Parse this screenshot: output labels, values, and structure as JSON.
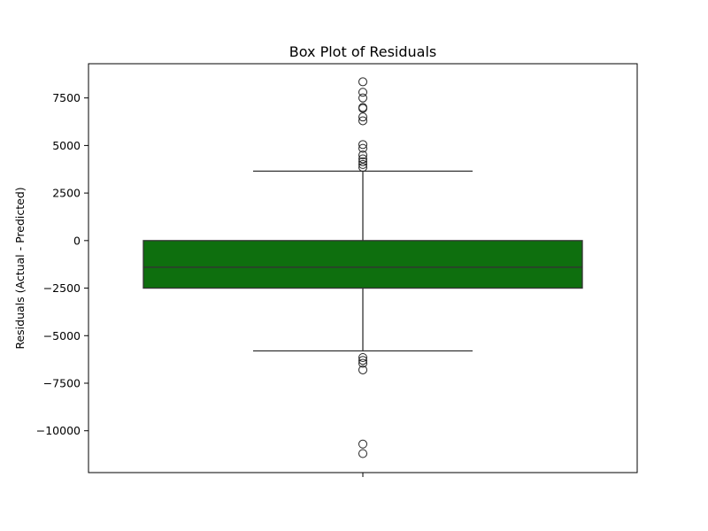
{
  "chart_data": {
    "type": "box",
    "title": "Box Plot of Residuals",
    "xlabel": "",
    "ylabel": "Residuals (Actual - Predicted)",
    "ylim": [
      -12200,
      9300
    ],
    "yticks": [
      7500,
      5000,
      2500,
      0,
      -2500,
      -5000,
      -7500,
      -10000
    ],
    "ytick_labels": [
      "7500",
      "5000",
      "2500",
      "0",
      "−2500",
      "−5000",
      "−7500",
      "−10000"
    ],
    "grid": false,
    "box": {
      "q1": -2500,
      "median": -1400,
      "q3": 0,
      "whisker_low": -5800,
      "whisker_high": 3650,
      "color": "#0e6f0e",
      "outliers": [
        8350,
        7800,
        7500,
        7000,
        6950,
        6500,
        6300,
        5050,
        4850,
        4500,
        4300,
        4150,
        4000,
        3850,
        -6150,
        -6300,
        -6450,
        -6800,
        -10700,
        -11200
      ]
    }
  }
}
